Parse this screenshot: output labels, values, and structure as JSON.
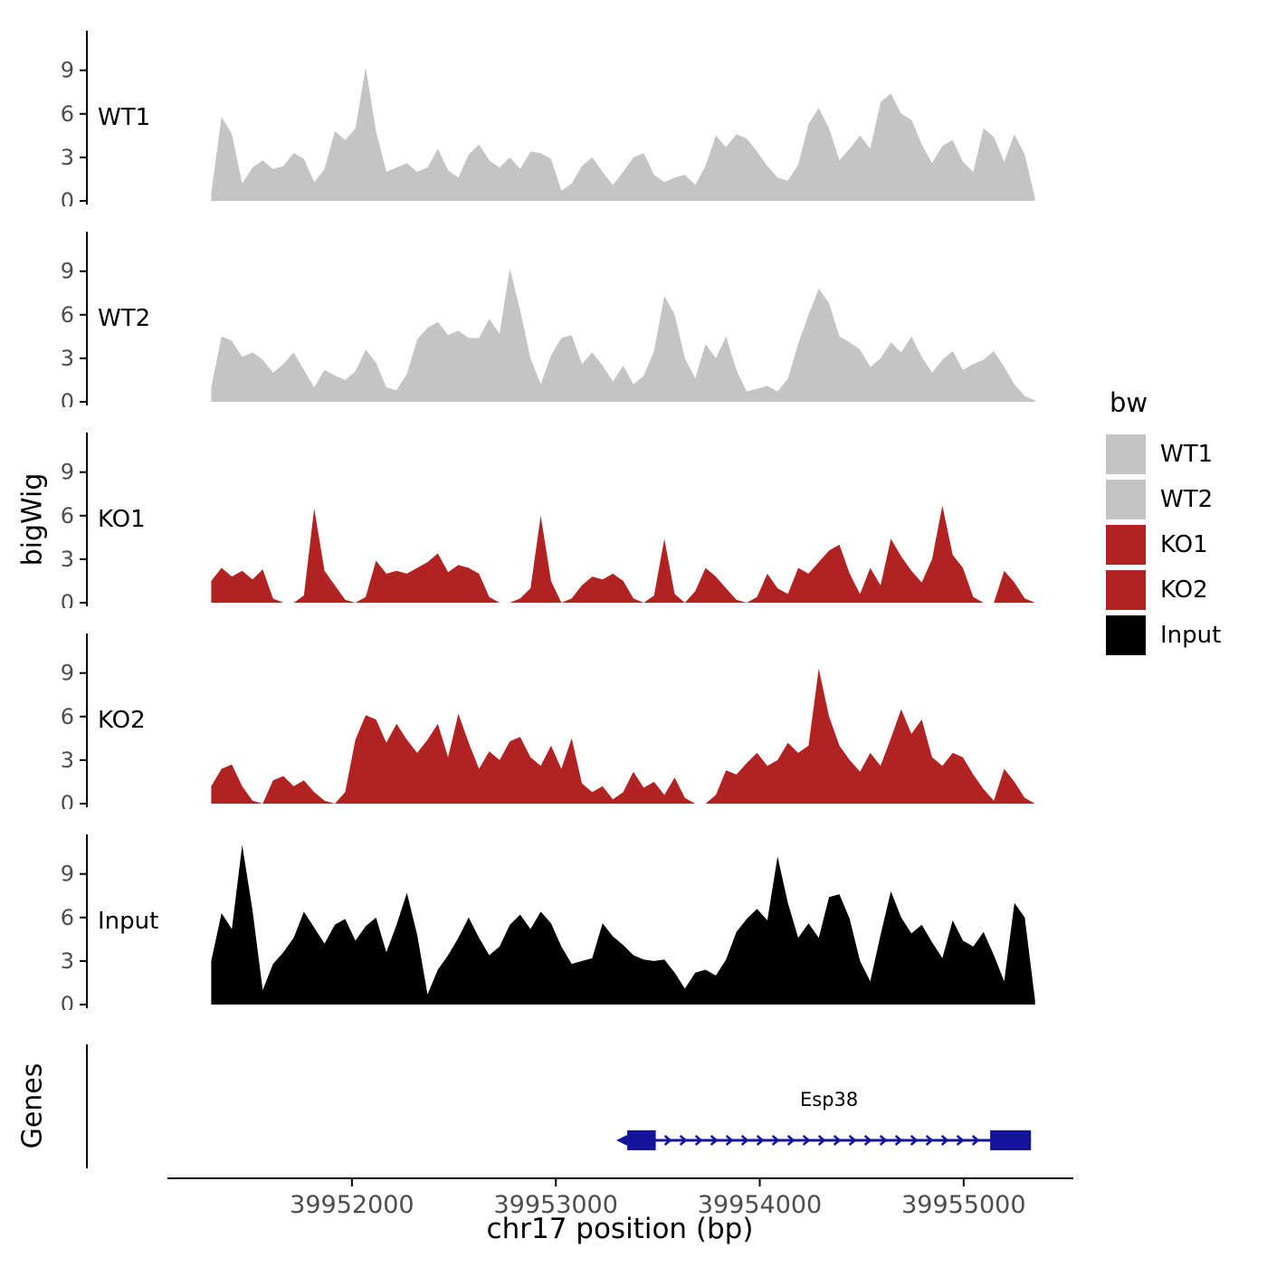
{
  "figure": {
    "y_axis_label": "bigWig",
    "genes_axis_label": "Genes",
    "x_axis_label": "chr17 position (bp)"
  },
  "legend": {
    "title": "bw",
    "entries": [
      {
        "label": "WT1",
        "color": "#c4c4c4"
      },
      {
        "label": "WT2",
        "color": "#c4c4c4"
      },
      {
        "label": "KO1",
        "color": "#b22222"
      },
      {
        "label": "KO2",
        "color": "#b22222"
      },
      {
        "label": "Input",
        "color": "#000000"
      }
    ]
  },
  "chart_data": {
    "type": "area",
    "title": "",
    "xlabel": "chr17 position (bp)",
    "ylabel": "bigWig",
    "grid": false,
    "legend_position": "right",
    "x_domain": [
      39950700,
      39955560
    ],
    "x_ticks": [
      39952000,
      39953000,
      39954000,
      39955000
    ],
    "x_tick_labels": [
      "39952000",
      "39953000",
      "39954000",
      "39955000"
    ],
    "y_ticks": [
      0,
      3,
      6,
      9
    ],
    "y_max": 11.6,
    "data_x_start": 39951310,
    "data_x_end": 39955350,
    "tracks": [
      {
        "name": "WT1",
        "color": "#c4c4c4",
        "values": [
          0.5,
          5.8,
          4.6,
          1.2,
          2.3,
          2.8,
          2.2,
          2.4,
          3.3,
          2.9,
          1.3,
          2.2,
          4.8,
          4.2,
          5.0,
          9.2,
          4.8,
          2.0,
          2.3,
          2.6,
          2.0,
          2.3,
          3.6,
          2.1,
          1.6,
          3.2,
          3.9,
          2.8,
          2.3,
          3.0,
          2.2,
          3.4,
          3.3,
          2.9,
          0.7,
          1.2,
          2.4,
          3.0,
          2.0,
          1.1,
          2.0,
          3.0,
          3.3,
          1.8,
          1.3,
          1.6,
          1.8,
          1.1,
          2.4,
          4.5,
          3.7,
          4.6,
          4.3,
          3.4,
          2.4,
          1.6,
          1.4,
          2.5,
          5.3,
          6.4,
          5.0,
          2.8,
          3.6,
          4.5,
          3.6,
          6.8,
          7.4,
          6.0,
          5.6,
          3.9,
          2.6,
          3.8,
          4.2,
          2.7,
          2.0,
          5.0,
          4.4,
          2.7,
          4.6,
          3.2,
          0.2
        ]
      },
      {
        "name": "WT2",
        "color": "#c4c4c4",
        "values": [
          1.0,
          4.5,
          4.2,
          3.1,
          3.4,
          2.9,
          2.0,
          2.6,
          3.4,
          2.2,
          1.0,
          2.2,
          1.8,
          1.5,
          2.1,
          3.6,
          2.7,
          1.0,
          0.8,
          1.9,
          4.3,
          5.1,
          5.5,
          4.6,
          4.9,
          4.4,
          4.4,
          5.7,
          4.7,
          9.2,
          6.3,
          3.0,
          1.2,
          3.2,
          4.4,
          4.6,
          2.6,
          3.4,
          2.5,
          1.4,
          2.5,
          1.2,
          1.8,
          3.5,
          7.3,
          6.0,
          3.0,
          1.6,
          4.0,
          3.0,
          4.5,
          2.2,
          0.7,
          0.9,
          1.1,
          0.7,
          1.6,
          4.0,
          6.0,
          7.8,
          6.8,
          4.5,
          4.1,
          3.6,
          2.4,
          3.0,
          4.1,
          3.4,
          4.5,
          3.1,
          2.0,
          2.9,
          3.5,
          2.2,
          2.6,
          2.9,
          3.5,
          2.4,
          1.2,
          0.4,
          0.1
        ]
      },
      {
        "name": "KO1",
        "color": "#b22222",
        "values": [
          1.5,
          2.4,
          1.8,
          2.2,
          1.6,
          2.3,
          0.3,
          0,
          0,
          0.5,
          6.5,
          2.2,
          1.2,
          0.2,
          0,
          0.4,
          2.9,
          2.0,
          2.2,
          2.0,
          2.4,
          2.8,
          3.4,
          2.1,
          2.6,
          2.4,
          2.0,
          0.4,
          0,
          0,
          0.3,
          1.0,
          6.0,
          1.5,
          0,
          0.3,
          1.2,
          1.8,
          1.6,
          2.0,
          1.5,
          0.3,
          0,
          0.5,
          4.4,
          0.6,
          0,
          0.8,
          2.4,
          1.8,
          1.0,
          0.2,
          0,
          0.4,
          2.0,
          1.0,
          0.6,
          2.4,
          2.0,
          2.8,
          3.6,
          4.0,
          2.0,
          0.6,
          2.4,
          1.2,
          4.4,
          3.2,
          2.2,
          1.4,
          3.0,
          6.7,
          3.3,
          2.4,
          0.4,
          0,
          0,
          2.2,
          1.4,
          0.3,
          0
        ]
      },
      {
        "name": "KO2",
        "color": "#b22222",
        "values": [
          1.2,
          2.4,
          2.7,
          1.2,
          0.2,
          0,
          1.6,
          1.9,
          1.2,
          1.6,
          0.8,
          0.2,
          0,
          0.8,
          4.4,
          6.1,
          5.8,
          4.2,
          5.5,
          4.4,
          3.5,
          4.4,
          5.5,
          3.2,
          6.2,
          4.2,
          2.4,
          3.6,
          3.0,
          4.3,
          4.6,
          3.2,
          2.6,
          4.0,
          2.4,
          4.5,
          1.4,
          0.8,
          1.2,
          0.3,
          0.8,
          2.2,
          1.1,
          1.5,
          0.6,
          1.8,
          0.4,
          0,
          0,
          0.6,
          2.3,
          2.0,
          2.8,
          3.5,
          2.6,
          3.0,
          4.2,
          3.5,
          4.0,
          9.3,
          6.0,
          4.0,
          3.0,
          2.2,
          3.5,
          2.6,
          4.5,
          6.5,
          4.8,
          5.8,
          3.2,
          2.6,
          3.5,
          3.2,
          2.0,
          1.0,
          0.2,
          2.4,
          1.5,
          0.4,
          0
        ]
      },
      {
        "name": "Input",
        "color": "#000000",
        "values": [
          3.0,
          6.3,
          5.2,
          11.0,
          6.5,
          1.0,
          2.8,
          3.6,
          4.6,
          6.4,
          5.3,
          4.2,
          5.5,
          5.9,
          4.4,
          5.4,
          6.0,
          3.6,
          5.5,
          7.7,
          4.8,
          0.7,
          2.4,
          3.4,
          4.6,
          6.0,
          4.6,
          3.4,
          4.0,
          5.5,
          6.2,
          5.2,
          6.4,
          5.6,
          4.0,
          2.8,
          3.0,
          3.2,
          5.6,
          4.7,
          4.1,
          3.4,
          3.1,
          3.0,
          3.1,
          2.2,
          1.1,
          2.2,
          2.4,
          2.0,
          3.1,
          5.0,
          5.9,
          6.6,
          5.8,
          10.2,
          7.0,
          4.6,
          5.6,
          4.6,
          7.4,
          7.6,
          5.9,
          3.0,
          1.6,
          4.8,
          7.8,
          6.0,
          4.9,
          5.5,
          4.3,
          3.2,
          5.8,
          4.4,
          4.0,
          5.0,
          3.4,
          1.6,
          7.0,
          6.0,
          0.3
        ]
      }
    ],
    "genes": {
      "panel_label": "Genes",
      "features": [
        {
          "name": "Esp38",
          "label": "Esp38",
          "start": 39953350,
          "end": 39955330,
          "strand": "+",
          "color": "#14149b",
          "exons": [
            [
              39953350,
              39953490
            ],
            [
              39955130,
              39955330
            ]
          ]
        }
      ]
    }
  }
}
